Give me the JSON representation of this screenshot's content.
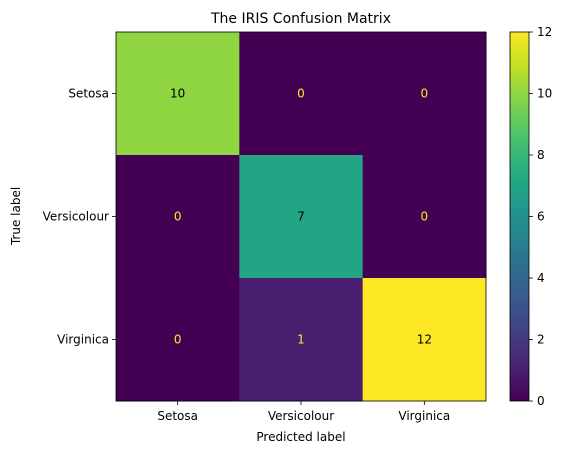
{
  "chart_data": {
    "type": "heatmap",
    "title": "The IRIS Confusion Matrix",
    "xlabel": "Predicted label",
    "ylabel": "True label",
    "x_categories": [
      "Setosa",
      "Versicolour",
      "Virginica"
    ],
    "y_categories": [
      "Setosa",
      "Versicolour",
      "Virginica"
    ],
    "matrix": [
      [
        10,
        0,
        0
      ],
      [
        0,
        7,
        0
      ],
      [
        0,
        1,
        12
      ]
    ],
    "colormap": "viridis",
    "color_range": [
      0,
      12
    ],
    "colorbar_ticks": [
      0,
      2,
      4,
      6,
      8,
      10,
      12
    ],
    "text_color_dark": "#000000",
    "text_color_light": "#FDE725",
    "grid": false
  }
}
